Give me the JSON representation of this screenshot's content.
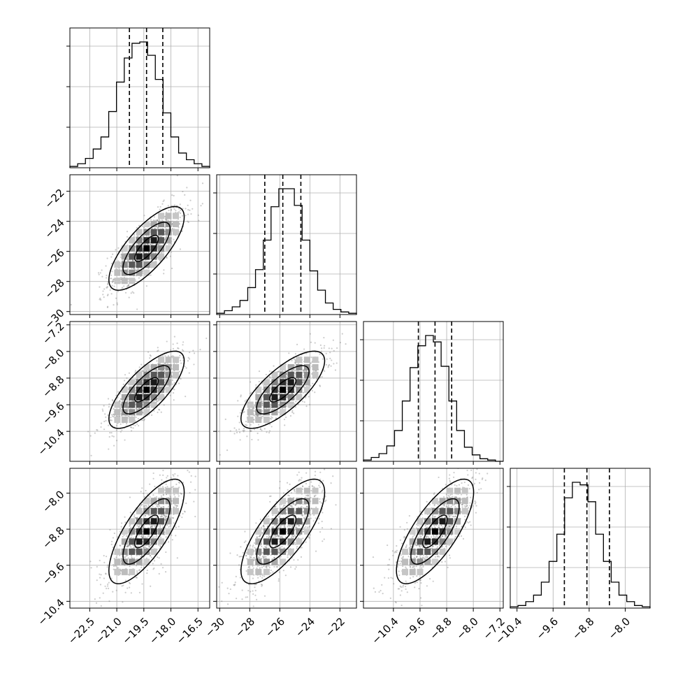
{
  "chart_data": {
    "type": "corner",
    "title": "",
    "grid": true,
    "colors": {
      "line": "#000000",
      "grid": "#b0b0b0",
      "points": "#7f7f7f"
    },
    "parameters": [
      {
        "index": 0,
        "xlim": [
          -23.6,
          -15.85
        ],
        "quantiles": [
          -20.3,
          -19.35,
          -18.45
        ],
        "ticks": [
          -22.5,
          -21.0,
          -19.5,
          -18.0,
          -16.5
        ],
        "tick_labels": [
          "−22.5",
          "−21.0",
          "−19.5",
          "−18.0",
          "−16.5"
        ]
      },
      {
        "index": 1,
        "xlim": [
          -30.2,
          -20.9
        ],
        "quantiles": [
          -27.0,
          -25.8,
          -24.6
        ],
        "ticks": [
          -30,
          -28,
          -26,
          -24,
          -22
        ],
        "tick_labels": [
          "−30",
          "−28",
          "−26",
          "−24",
          "−22"
        ]
      },
      {
        "index": 2,
        "xlim": [
          -11.3,
          -7.1
        ],
        "quantiles": [
          -9.65,
          -9.15,
          -8.65
        ],
        "ticks": [
          -10.4,
          -9.6,
          -8.8,
          -8.0,
          -7.2
        ],
        "tick_labels": [
          "−10.4",
          "−9.6",
          "−8.8",
          "−8.0",
          "−7.2"
        ]
      },
      {
        "index": 3,
        "xlim": [
          -10.55,
          -7.45
        ],
        "quantiles": [
          -9.35,
          -8.85,
          -8.35
        ],
        "ticks": [
          -10.4,
          -9.6,
          -8.8,
          -8.0
        ],
        "tick_labels": [
          "−10.4",
          "−9.6",
          "−8.8",
          "−8.0"
        ]
      }
    ],
    "histograms": [
      {
        "param": 0,
        "counts": [
          1,
          3,
          7,
          14,
          23,
          42,
          64,
          82,
          93,
          94,
          84,
          66,
          41,
          23,
          11,
          6,
          3,
          1
        ]
      },
      {
        "param": 1,
        "counts": [
          1,
          3,
          6,
          11,
          21,
          35,
          58,
          84,
          98,
          98,
          85,
          58,
          34,
          19,
          9,
          4,
          2,
          1
        ]
      },
      {
        "param": 2,
        "counts": [
          1,
          3,
          6,
          12,
          24,
          47,
          73,
          90,
          98,
          93,
          74,
          47,
          24,
          11,
          5,
          2,
          1,
          0
        ]
      },
      {
        "param": 3,
        "counts": [
          1,
          2,
          5,
          10,
          20,
          36,
          57,
          85,
          97,
          95,
          82,
          57,
          36,
          20,
          10,
          5,
          2,
          1
        ]
      }
    ]
  }
}
